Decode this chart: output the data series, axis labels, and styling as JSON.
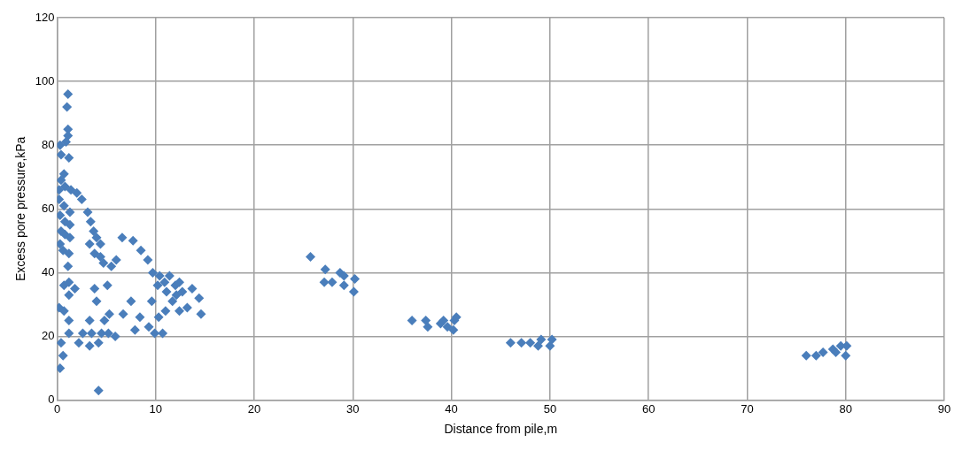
{
  "chart_data": {
    "type": "scatter",
    "xlabel": "Distance from pile,m",
    "ylabel": "Excess pore pressure,kPa",
    "xlim": [
      0,
      90
    ],
    "xticks": [
      0,
      10,
      20,
      30,
      40,
      50,
      60,
      70,
      80,
      90
    ],
    "ylim": [
      0,
      120
    ],
    "yticks": [
      0,
      20,
      40,
      60,
      80,
      100,
      120
    ],
    "grid": true,
    "legend": false,
    "marker": "diamond",
    "series": [
      {
        "color": "#4a7ebb",
        "x": [
          1.1,
          1.0,
          1.1,
          1.1,
          0.9,
          0.3,
          0.4,
          1.2,
          0.7,
          0.4,
          0.8,
          1.4,
          2.0,
          2.5,
          0.2,
          0.2,
          0.7,
          1.3,
          0.3,
          0.8,
          1.3,
          0.4,
          0.8,
          1.3,
          0.3,
          0.6,
          1.2,
          3.1,
          3.4,
          3.7,
          4.0,
          4.4,
          3.3,
          3.8,
          4.4,
          4.7,
          5.5,
          6.0,
          6.6,
          7.7,
          8.5,
          9.2,
          1.1,
          1.2,
          0.7,
          1.2,
          1.8,
          0.2,
          0.7,
          1.2,
          1.2,
          3.8,
          5.1,
          4.0,
          6.7,
          7.5,
          5.3,
          9.7,
          10.4,
          10.9,
          11.4,
          10.2,
          11.1,
          12.0,
          12.4,
          12.7,
          13.7,
          14.4,
          14.6,
          13.2,
          11.7,
          11.0,
          10.3,
          9.6,
          8.4,
          9.3,
          7.9,
          9.9,
          10.7,
          12.4,
          12.1,
          3.3,
          2.6,
          3.5,
          4.5,
          5.2,
          5.9,
          4.8,
          2.2,
          3.3,
          4.2,
          0.4,
          0.6,
          0.3,
          4.2,
          25.7,
          27.2,
          28.7,
          29.1,
          30.2,
          27.1,
          27.9,
          29.1,
          30.1,
          36.0,
          37.4,
          37.6,
          38.9,
          39.2,
          39.6,
          40.3,
          40.5,
          40.2,
          46.0,
          47.1,
          48.0,
          48.8,
          49.1,
          50.0,
          50.2,
          76.0,
          77.0,
          77.7,
          78.7,
          79.5,
          80.1,
          80.0,
          79.0
        ],
        "values": [
          96,
          92,
          85,
          83,
          81,
          80,
          77,
          76,
          71,
          69,
          67,
          66,
          65,
          63,
          66,
          63,
          61,
          59,
          58,
          56,
          55,
          53,
          52,
          51,
          49,
          47,
          46,
          59,
          56,
          53,
          51,
          49,
          49,
          46,
          45,
          43,
          42,
          44,
          51,
          50,
          47,
          44,
          42,
          37,
          36,
          33,
          35,
          29,
          28,
          25,
          21,
          35,
          36,
          31,
          27,
          31,
          27,
          40,
          39,
          37,
          39,
          36,
          34,
          36,
          37,
          34,
          35,
          32,
          27,
          29,
          31,
          28,
          26,
          31,
          26,
          23,
          22,
          21,
          21,
          28,
          33,
          25,
          21,
          21,
          21,
          21,
          20,
          25,
          18,
          17,
          18,
          18,
          14,
          10,
          3,
          45,
          41,
          40,
          39,
          38,
          37,
          37,
          36,
          34,
          25,
          25,
          23,
          24,
          25,
          23,
          25,
          26,
          22,
          18,
          18,
          18,
          17,
          19,
          17,
          19,
          14,
          14,
          15,
          16,
          17,
          17,
          14,
          15
        ]
      }
    ]
  }
}
